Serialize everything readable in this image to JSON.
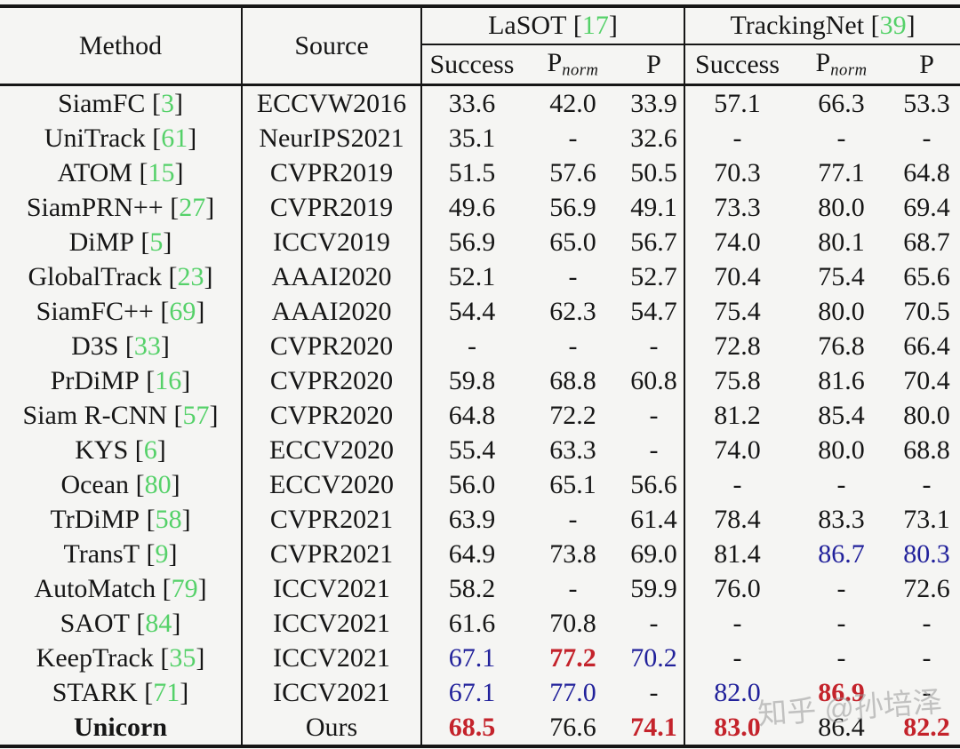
{
  "table": {
    "headers": {
      "method": "Method",
      "source": "Source",
      "groups": [
        {
          "name": "LaSOT",
          "cite": "17"
        },
        {
          "name": "TrackingNet",
          "cite": "39"
        }
      ],
      "subheaders": [
        {
          "text": "Success"
        },
        {
          "text": "P",
          "sub": "norm"
        },
        {
          "text": "P"
        },
        {
          "text": "Success"
        },
        {
          "text": "P",
          "sub": "norm"
        },
        {
          "text": "P"
        }
      ]
    },
    "rows": [
      {
        "method": "SiamFC",
        "cite": "3",
        "bold": false,
        "source": "ECCVW2016",
        "values": [
          {
            "v": "33.6",
            "c": "plain"
          },
          {
            "v": "42.0",
            "c": "plain"
          },
          {
            "v": "33.9",
            "c": "plain"
          },
          {
            "v": "57.1",
            "c": "plain"
          },
          {
            "v": "66.3",
            "c": "plain"
          },
          {
            "v": "53.3",
            "c": "plain"
          }
        ]
      },
      {
        "method": "UniTrack",
        "cite": "61",
        "bold": false,
        "source": "NeurIPS2021",
        "values": [
          {
            "v": "35.1",
            "c": "plain"
          },
          {
            "v": "-",
            "c": "plain"
          },
          {
            "v": "32.6",
            "c": "plain"
          },
          {
            "v": "-",
            "c": "plain"
          },
          {
            "v": "-",
            "c": "plain"
          },
          {
            "v": "-",
            "c": "plain"
          }
        ]
      },
      {
        "method": "ATOM",
        "cite": "15",
        "bold": false,
        "source": "CVPR2019",
        "values": [
          {
            "v": "51.5",
            "c": "plain"
          },
          {
            "v": "57.6",
            "c": "plain"
          },
          {
            "v": "50.5",
            "c": "plain"
          },
          {
            "v": "70.3",
            "c": "plain"
          },
          {
            "v": "77.1",
            "c": "plain"
          },
          {
            "v": "64.8",
            "c": "plain"
          }
        ]
      },
      {
        "method": "SiamPRN++",
        "cite": "27",
        "bold": false,
        "source": "CVPR2019",
        "values": [
          {
            "v": "49.6",
            "c": "plain"
          },
          {
            "v": "56.9",
            "c": "plain"
          },
          {
            "v": "49.1",
            "c": "plain"
          },
          {
            "v": "73.3",
            "c": "plain"
          },
          {
            "v": "80.0",
            "c": "plain"
          },
          {
            "v": "69.4",
            "c": "plain"
          }
        ]
      },
      {
        "method": "DiMP",
        "cite": "5",
        "bold": false,
        "source": "ICCV2019",
        "values": [
          {
            "v": "56.9",
            "c": "plain"
          },
          {
            "v": "65.0",
            "c": "plain"
          },
          {
            "v": "56.7",
            "c": "plain"
          },
          {
            "v": "74.0",
            "c": "plain"
          },
          {
            "v": "80.1",
            "c": "plain"
          },
          {
            "v": "68.7",
            "c": "plain"
          }
        ]
      },
      {
        "method": "GlobalTrack",
        "cite": "23",
        "bold": false,
        "source": "AAAI2020",
        "values": [
          {
            "v": "52.1",
            "c": "plain"
          },
          {
            "v": "-",
            "c": "plain"
          },
          {
            "v": "52.7",
            "c": "plain"
          },
          {
            "v": "70.4",
            "c": "plain"
          },
          {
            "v": "75.4",
            "c": "plain"
          },
          {
            "v": "65.6",
            "c": "plain"
          }
        ]
      },
      {
        "method": "SiamFC++",
        "cite": "69",
        "bold": false,
        "source": "AAAI2020",
        "values": [
          {
            "v": "54.4",
            "c": "plain"
          },
          {
            "v": "62.3",
            "c": "plain"
          },
          {
            "v": "54.7",
            "c": "plain"
          },
          {
            "v": "75.4",
            "c": "plain"
          },
          {
            "v": "80.0",
            "c": "plain"
          },
          {
            "v": "70.5",
            "c": "plain"
          }
        ]
      },
      {
        "method": "D3S",
        "cite": "33",
        "bold": false,
        "source": "CVPR2020",
        "values": [
          {
            "v": "-",
            "c": "plain"
          },
          {
            "v": "-",
            "c": "plain"
          },
          {
            "v": "-",
            "c": "plain"
          },
          {
            "v": "72.8",
            "c": "plain"
          },
          {
            "v": "76.8",
            "c": "plain"
          },
          {
            "v": "66.4",
            "c": "plain"
          }
        ]
      },
      {
        "method": "PrDiMP",
        "cite": "16",
        "bold": false,
        "source": "CVPR2020",
        "values": [
          {
            "v": "59.8",
            "c": "plain"
          },
          {
            "v": "68.8",
            "c": "plain"
          },
          {
            "v": "60.8",
            "c": "plain"
          },
          {
            "v": "75.8",
            "c": "plain"
          },
          {
            "v": "81.6",
            "c": "plain"
          },
          {
            "v": "70.4",
            "c": "plain"
          }
        ]
      },
      {
        "method": "Siam R-CNN",
        "cite": "57",
        "bold": false,
        "source": "CVPR2020",
        "values": [
          {
            "v": "64.8",
            "c": "plain"
          },
          {
            "v": "72.2",
            "c": "plain"
          },
          {
            "v": "-",
            "c": "plain"
          },
          {
            "v": "81.2",
            "c": "plain"
          },
          {
            "v": "85.4",
            "c": "plain"
          },
          {
            "v": "80.0",
            "c": "plain"
          }
        ]
      },
      {
        "method": "KYS",
        "cite": "6",
        "bold": false,
        "source": "ECCV2020",
        "values": [
          {
            "v": "55.4",
            "c": "plain"
          },
          {
            "v": "63.3",
            "c": "plain"
          },
          {
            "v": "-",
            "c": "plain"
          },
          {
            "v": "74.0",
            "c": "plain"
          },
          {
            "v": "80.0",
            "c": "plain"
          },
          {
            "v": "68.8",
            "c": "plain"
          }
        ]
      },
      {
        "method": "Ocean",
        "cite": "80",
        "bold": false,
        "source": "ECCV2020",
        "values": [
          {
            "v": "56.0",
            "c": "plain"
          },
          {
            "v": "65.1",
            "c": "plain"
          },
          {
            "v": "56.6",
            "c": "plain"
          },
          {
            "v": "-",
            "c": "plain"
          },
          {
            "v": "-",
            "c": "plain"
          },
          {
            "v": "-",
            "c": "plain"
          }
        ]
      },
      {
        "method": "TrDiMP",
        "cite": "58",
        "bold": false,
        "source": "CVPR2021",
        "values": [
          {
            "v": "63.9",
            "c": "plain"
          },
          {
            "v": "-",
            "c": "plain"
          },
          {
            "v": "61.4",
            "c": "plain"
          },
          {
            "v": "78.4",
            "c": "plain"
          },
          {
            "v": "83.3",
            "c": "plain"
          },
          {
            "v": "73.1",
            "c": "plain"
          }
        ]
      },
      {
        "method": "TransT",
        "cite": "9",
        "bold": false,
        "source": "CVPR2021",
        "values": [
          {
            "v": "64.9",
            "c": "plain"
          },
          {
            "v": "73.8",
            "c": "plain"
          },
          {
            "v": "69.0",
            "c": "plain"
          },
          {
            "v": "81.4",
            "c": "plain"
          },
          {
            "v": "86.7",
            "c": "blue"
          },
          {
            "v": "80.3",
            "c": "blue"
          }
        ]
      },
      {
        "method": "AutoMatch",
        "cite": "79",
        "bold": false,
        "source": "ICCV2021",
        "values": [
          {
            "v": "58.2",
            "c": "plain"
          },
          {
            "v": "-",
            "c": "plain"
          },
          {
            "v": "59.9",
            "c": "plain"
          },
          {
            "v": "76.0",
            "c": "plain"
          },
          {
            "v": "-",
            "c": "plain"
          },
          {
            "v": "72.6",
            "c": "plain"
          }
        ]
      },
      {
        "method": "SAOT",
        "cite": "84",
        "bold": false,
        "source": "ICCV2021",
        "values": [
          {
            "v": "61.6",
            "c": "plain"
          },
          {
            "v": "70.8",
            "c": "plain"
          },
          {
            "v": "-",
            "c": "plain"
          },
          {
            "v": "-",
            "c": "plain"
          },
          {
            "v": "-",
            "c": "plain"
          },
          {
            "v": "-",
            "c": "plain"
          }
        ]
      },
      {
        "method": "KeepTrack",
        "cite": "35",
        "bold": false,
        "source": "ICCV2021",
        "values": [
          {
            "v": "67.1",
            "c": "blue"
          },
          {
            "v": "77.2",
            "c": "red"
          },
          {
            "v": "70.2",
            "c": "blue"
          },
          {
            "v": "-",
            "c": "plain"
          },
          {
            "v": "-",
            "c": "plain"
          },
          {
            "v": "-",
            "c": "plain"
          }
        ]
      },
      {
        "method": "STARK",
        "cite": "71",
        "bold": false,
        "source": "ICCV2021",
        "values": [
          {
            "v": "67.1",
            "c": "blue"
          },
          {
            "v": "77.0",
            "c": "blue"
          },
          {
            "v": "-",
            "c": "plain"
          },
          {
            "v": "82.0",
            "c": "blue"
          },
          {
            "v": "86.9",
            "c": "red"
          },
          {
            "v": "-",
            "c": "plain"
          }
        ]
      },
      {
        "method": "Unicorn",
        "cite": "",
        "bold": true,
        "source": "Ours",
        "values": [
          {
            "v": "68.5",
            "c": "red"
          },
          {
            "v": "76.6",
            "c": "plain"
          },
          {
            "v": "74.1",
            "c": "red"
          },
          {
            "v": "83.0",
            "c": "red"
          },
          {
            "v": "86.4",
            "c": "plain"
          },
          {
            "v": "82.2",
            "c": "red"
          }
        ]
      }
    ]
  },
  "colors": {
    "citation_green": "#55d169",
    "best_red": "#c4232b",
    "second_blue": "#21219b",
    "rule_black": "#161616"
  },
  "watermark": {
    "text": "知乎 @孙培泽"
  }
}
